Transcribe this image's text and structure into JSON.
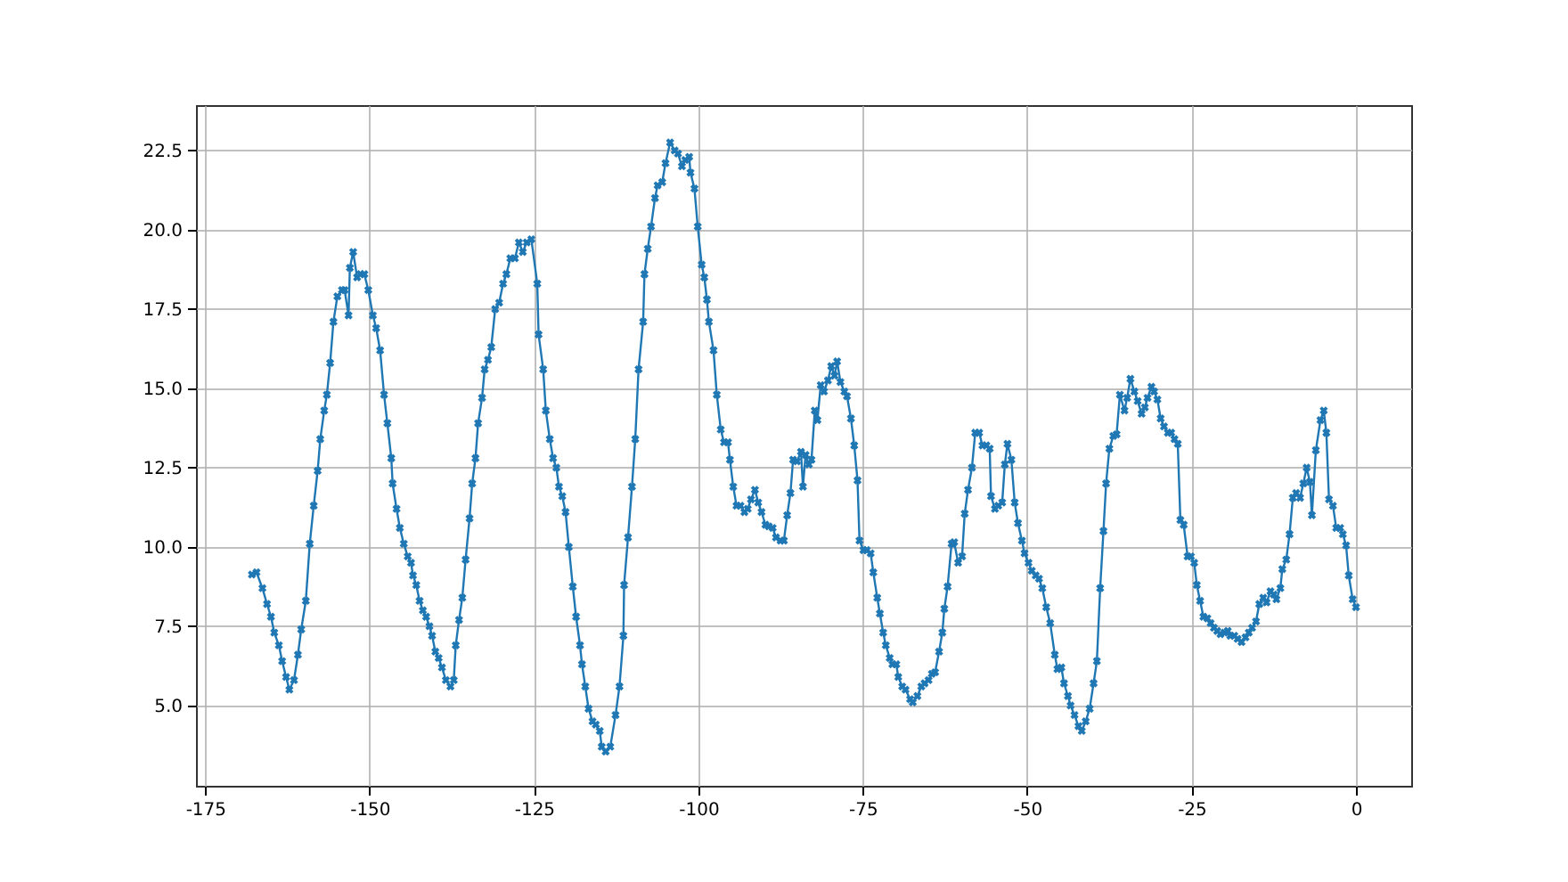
{
  "chart_data": {
    "type": "line",
    "marker": "cross",
    "line_style": "solid",
    "grid": true,
    "xlim": [
      -176.4,
      8.4
    ],
    "xticks": [
      -175,
      -150,
      -125,
      -100,
      -75,
      -50,
      -25,
      0
    ],
    "ylim": [
      2.47,
      23.93
    ],
    "yticks": [
      {
        "value": 5,
        "label": "5.0"
      },
      {
        "value": 7.5,
        "label": "7.5"
      },
      {
        "value": 10,
        "label": "10.0"
      },
      {
        "value": 12.5,
        "label": "12.5"
      },
      {
        "value": 15,
        "label": "15.0"
      },
      {
        "value": 17.5,
        "label": "17.5"
      },
      {
        "value": 20,
        "label": "20.0"
      },
      {
        "value": 22.5,
        "label": "22.5"
      }
    ],
    "x": [
      -167.9,
      -167.2,
      -166.3,
      -165.6,
      -165,
      -164.5,
      -163.8,
      -163.3,
      -162.7,
      -162.2,
      -161.5,
      -160.9,
      -160.4,
      -159.7,
      -159.1,
      -158.5,
      -157.9,
      -157.5,
      -156.9,
      -156.5,
      -156,
      -155.5,
      -154.9,
      -154.2,
      -153.8,
      -153.2,
      -153,
      -152.5,
      -151.9,
      -151.4,
      -150.8,
      -150.2,
      -149.5,
      -149,
      -148.4,
      -147.8,
      -147.3,
      -146.7,
      -146.5,
      -145.9,
      -145.4,
      -144.8,
      -144.2,
      -143.7,
      -143.4,
      -142.9,
      -142.4,
      -141.9,
      -141.4,
      -140.9,
      -140.5,
      -140,
      -139.5,
      -139,
      -138.4,
      -137.7,
      -137.2,
      -136.9,
      -136.4,
      -135.9,
      -135.4,
      -134.8,
      -134.4,
      -133.9,
      -133.5,
      -132.9,
      -132.5,
      -132,
      -131.5,
      -130.9,
      -130.3,
      -129.7,
      -129.2,
      -128.6,
      -127.9,
      -127.3,
      -126.7,
      -126.1,
      -125.4,
      -124.5,
      -124.3,
      -123.6,
      -123.2,
      -122.6,
      -122.1,
      -121.6,
      -121.2,
      -120.7,
      -120.2,
      -119.7,
      -119.1,
      -118.6,
      -118,
      -117.7,
      -117.2,
      -116.7,
      -116.1,
      -115.6,
      -115,
      -114.7,
      -114.1,
      -113.4,
      -112.6,
      -112,
      -111.4,
      -111.3,
      -110.7,
      -110.1,
      -109.6,
      -109.1,
      -108.4,
      -108.2,
      -107.7,
      -107.2,
      -106.6,
      -106.2,
      -105.5,
      -105,
      -104.3,
      -103.6,
      -103.1,
      -102.5,
      -102,
      -101.4,
      -101.2,
      -100.6,
      -100.1,
      -99.5,
      -99.1,
      -98.7,
      -98.4,
      -97.7,
      -97.2,
      -96.6,
      -96.1,
      -95.5,
      -95.2,
      -94.7,
      -94.2,
      -93.6,
      -93,
      -92.5,
      -92,
      -91.4,
      -90.9,
      -90.4,
      -89.8,
      -89.3,
      -88.7,
      -88.2,
      -87.5,
      -87,
      -86.5,
      -86,
      -85.6,
      -85,
      -84.4,
      -84.1,
      -83.7,
      -83.2,
      -82.8,
      -82.3,
      -81.9,
      -81.4,
      -80.9,
      -80.3,
      -79.8,
      -79.3,
      -78.9,
      -78.4,
      -77.8,
      -77.4,
      -76.8,
      -76.3,
      -75.8,
      -75.5,
      -74.9,
      -74.4,
      -73.8,
      -73.4,
      -72.8,
      -72.4,
      -71.9,
      -71.5,
      -70.9,
      -70.5,
      -69.9,
      -69.6,
      -69,
      -68.5,
      -67.8,
      -67.4,
      -66.7,
      -66.1,
      -65.6,
      -65,
      -64.5,
      -64,
      -63.4,
      -62.9,
      -62.6,
      -62.1,
      -61.5,
      -61.1,
      -60.5,
      -59.9,
      -59.5,
      -59,
      -58.4,
      -57.9,
      -57.3,
      -56.8,
      -56.2,
      -55.7,
      -55.5,
      -54.9,
      -54.4,
      -53.8,
      -53.4,
      -53,
      -52.4,
      -51.9,
      -51.4,
      -50.8,
      -50.4,
      -49.8,
      -49.3,
      -48.7,
      -48.2,
      -47.7,
      -47.1,
      -46.5,
      -45.8,
      -45.4,
      -44.8,
      -44.4,
      -43.8,
      -43.4,
      -42.8,
      -42.2,
      -41.7,
      -41.1,
      -40.5,
      -39.9,
      -39.4,
      -38.9,
      -38.4,
      -38,
      -37.5,
      -36.9,
      -36.4,
      -35.9,
      -35.2,
      -34.8,
      -34.3,
      -33.7,
      -33.2,
      -32.6,
      -32.1,
      -31.7,
      -31.1,
      -30.7,
      -30.2,
      -29.7,
      -29.2,
      -28.6,
      -28.1,
      -27.6,
      -27.1,
      -26.7,
      -26.2,
      -25.6,
      -25.1,
      -24.6,
      -24.2,
      -23.7,
      -23.2,
      -22.6,
      -22.1,
      -21.6,
      -21.1,
      -20.6,
      -20,
      -19.5,
      -19.1,
      -18.5,
      -18,
      -17.4,
      -16.8,
      -16.3,
      -15.8,
      -15.2,
      -14.7,
      -14.1,
      -13.6,
      -13,
      -12.5,
      -12.1,
      -11.5,
      -11.2,
      -10.6,
      -10.1,
      -9.6,
      -9.1,
      -8.5,
      -8,
      -7.5,
      -7,
      -6.7,
      -6.1,
      -5.4,
      -4.9,
      -4.5,
      -4.1,
      -3.5,
      -3,
      -2.4,
      -2,
      -1.5,
      -1.1,
      -0.5,
      0
    ],
    "series": [
      {
        "color": "#1f77b4",
        "values": [
          9.13,
          9.2,
          8.7,
          8.2,
          7.8,
          7.3,
          6.9,
          6.4,
          5.9,
          5.5,
          5.8,
          6.6,
          7.4,
          8.3,
          10.1,
          11.3,
          12.4,
          13.4,
          14.3,
          14.8,
          15.8,
          17.1,
          17.9,
          18.1,
          18.1,
          17.3,
          18.8,
          19.3,
          18.5,
          18.6,
          18.6,
          18.1,
          17.3,
          16.9,
          16.2,
          14.8,
          13.9,
          12.8,
          12,
          11.2,
          10.6,
          10.1,
          9.7,
          9.5,
          9.1,
          8.8,
          8.3,
          8,
          7.8,
          7.5,
          7.2,
          6.7,
          6.5,
          6.2,
          5.8,
          5.6,
          5.8,
          6.9,
          7.7,
          8.4,
          9.6,
          10.9,
          12,
          12.8,
          13.9,
          14.7,
          15.6,
          15.9,
          16.3,
          17.5,
          17.7,
          18.3,
          18.6,
          19.1,
          19.1,
          19.6,
          19.3,
          19.6,
          19.7,
          18.3,
          16.7,
          15.6,
          14.3,
          13.4,
          12.8,
          12.5,
          11.9,
          11.6,
          11.1,
          10,
          8.75,
          7.8,
          6.9,
          6.3,
          5.6,
          4.9,
          4.5,
          4.4,
          4.2,
          3.7,
          3.55,
          3.7,
          4.7,
          5.6,
          7.2,
          8.8,
          10.3,
          11.9,
          13.4,
          15.6,
          17.1,
          18.6,
          19.4,
          20.1,
          21,
          21.4,
          21.5,
          22.1,
          22.75,
          22.5,
          22.4,
          22,
          22.2,
          22.3,
          21.8,
          21.3,
          20.1,
          18.9,
          18.5,
          17.8,
          17.1,
          16.2,
          14.8,
          13.7,
          13.3,
          13.3,
          12.75,
          11.9,
          11.3,
          11.3,
          11.1,
          11.2,
          11.5,
          11.8,
          11.4,
          11.1,
          10.7,
          10.65,
          10.6,
          10.3,
          10.2,
          10.2,
          11,
          11.7,
          12.75,
          12.7,
          13,
          11.9,
          12.9,
          12.6,
          12.75,
          14.3,
          14,
          15.1,
          14.9,
          15.25,
          15.7,
          15.4,
          15.85,
          15.2,
          14.9,
          14.75,
          14.05,
          13.2,
          12.1,
          10.2,
          9.9,
          9.9,
          9.8,
          9.2,
          8.4,
          7.9,
          7.3,
          6.9,
          6.5,
          6.3,
          6.3,
          5.9,
          5.6,
          5.5,
          5.2,
          5.1,
          5.3,
          5.6,
          5.7,
          5.8,
          6,
          6.05,
          6.7,
          7.3,
          8.05,
          8.75,
          10.1,
          10.15,
          9.5,
          9.7,
          11.05,
          11.8,
          12.5,
          13.6,
          13.6,
          13.2,
          13.2,
          13.1,
          11.6,
          11.2,
          11.3,
          11.4,
          12.6,
          13.25,
          12.75,
          11.4,
          10.75,
          10.2,
          9.8,
          9.5,
          9.25,
          9.1,
          9,
          8.7,
          8.1,
          7.6,
          6.6,
          6.15,
          6.2,
          5.7,
          5.3,
          5,
          4.7,
          4.35,
          4.2,
          4.5,
          4.9,
          5.7,
          6.4,
          8.7,
          10.5,
          12,
          13.1,
          13.5,
          13.55,
          14.8,
          14.3,
          14.7,
          15.3,
          14.9,
          14.6,
          14.2,
          14.4,
          14.7,
          15.05,
          14.9,
          14.65,
          14.05,
          13.8,
          13.6,
          13.6,
          13.4,
          13.25,
          10.85,
          10.7,
          9.7,
          9.7,
          9.5,
          8.8,
          8.3,
          7.8,
          7.75,
          7.6,
          7.45,
          7.35,
          7.25,
          7.3,
          7.35,
          7.2,
          7.2,
          7.1,
          7,
          7.15,
          7.3,
          7.45,
          7.65,
          8.2,
          8.4,
          8.25,
          8.6,
          8.5,
          8.35,
          8.7,
          9.3,
          9.6,
          10.4,
          11.55,
          11.7,
          11.55,
          12,
          12.5,
          12.05,
          11,
          13.05,
          14,
          14.3,
          13.6,
          11.5,
          11.3,
          10.6,
          10.6,
          10.4,
          10.05,
          9.1,
          8.35,
          8.1
        ]
      }
    ]
  }
}
